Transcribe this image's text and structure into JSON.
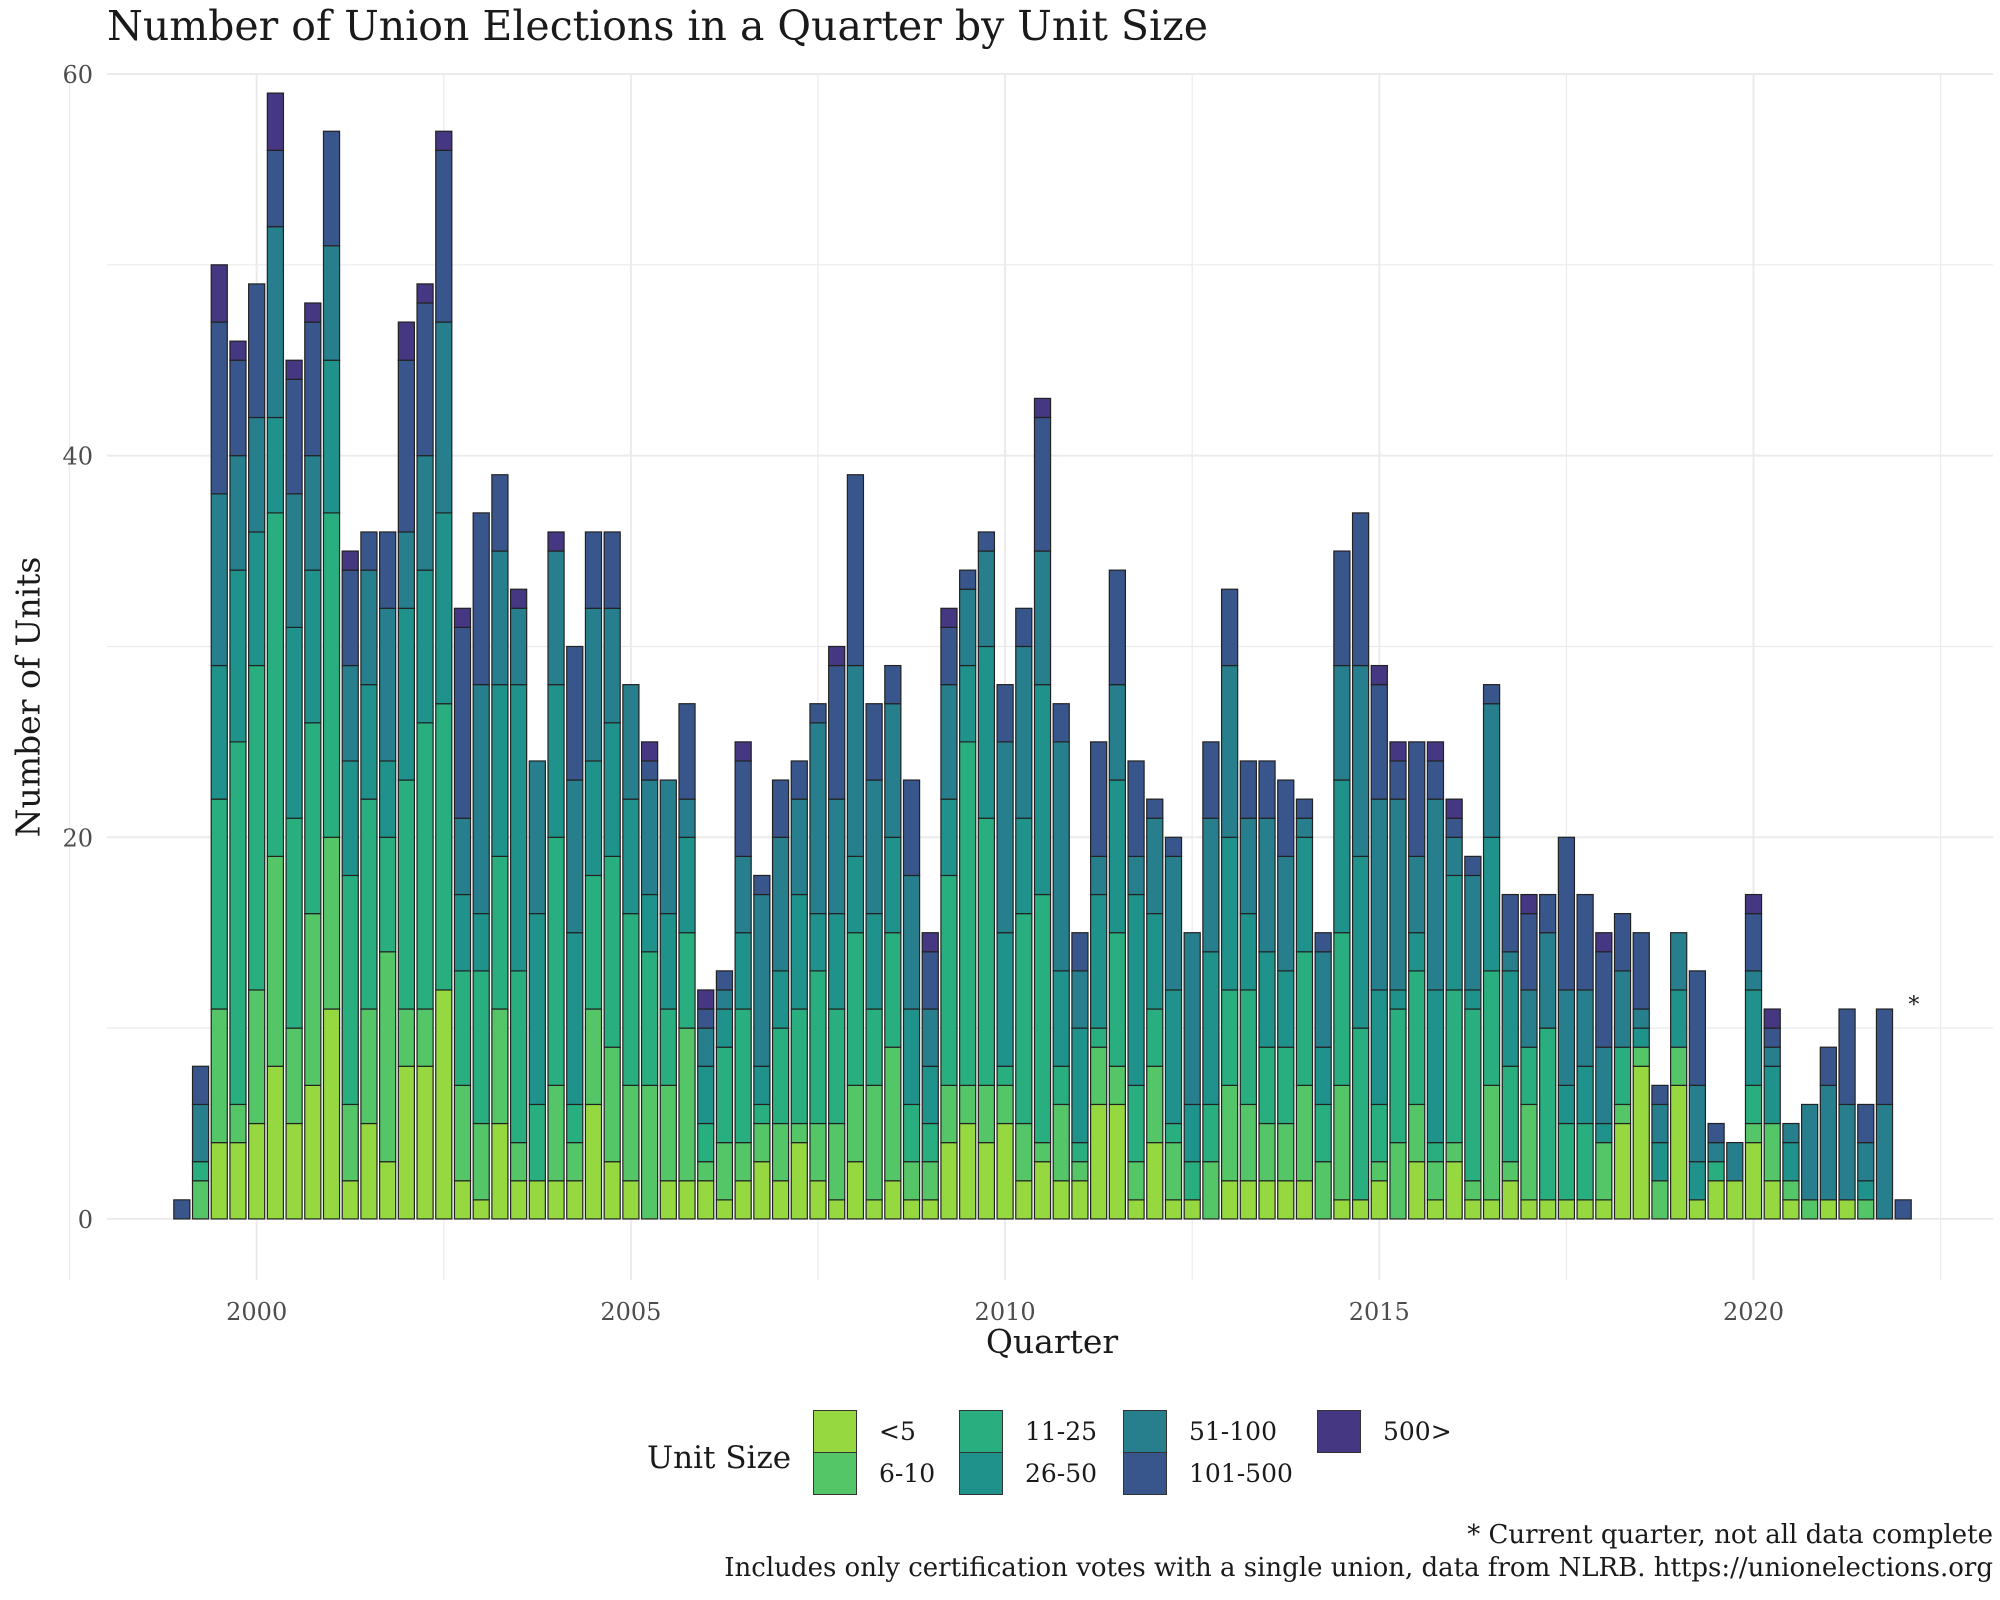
{
  "title": "Number of Union Elections in a Quarter by Unit Size",
  "captions": {
    "note": "* Current quarter, not all data complete",
    "source": "Includes only certification votes with a single union, data from NLRB. https://unionelections.org"
  },
  "legend": {
    "title": "Unit Size",
    "items": [
      {
        "label": "<5",
        "color": "#95D840"
      },
      {
        "label": "6-10",
        "color": "#55C667"
      },
      {
        "label": "11-25",
        "color": "#29AF7F"
      },
      {
        "label": "26-50",
        "color": "#20928C"
      },
      {
        "label": "51-100",
        "color": "#277F8E"
      },
      {
        "label": "101-500",
        "color": "#39568C"
      },
      {
        "label": "500>",
        "color": "#453781"
      }
    ]
  },
  "chart_data": {
    "type": "bar",
    "stacked": true,
    "title": "Number of Union Elections in a Quarter by Unit Size",
    "xlabel": "Quarter",
    "ylabel": "Number of Units",
    "xlim": [
      1998.0,
      2023.2
    ],
    "ylim": [
      -3.2,
      60
    ],
    "x_ticks": [
      2000,
      2005,
      2010,
      2015,
      2020
    ],
    "y_ticks": [
      0,
      20,
      40,
      60
    ],
    "grid": true,
    "legend_position": "bottom",
    "annotation": {
      "x": 2022.25,
      "y": 10,
      "text": "*"
    },
    "x": [
      1999.0,
      1999.25,
      1999.5,
      1999.75,
      2000.0,
      2000.25,
      2000.5,
      2000.75,
      2001.0,
      2001.25,
      2001.5,
      2001.75,
      2002.0,
      2002.25,
      2002.5,
      2002.75,
      2003.0,
      2003.25,
      2003.5,
      2003.75,
      2004.0,
      2004.25,
      2004.5,
      2004.75,
      2005.0,
      2005.25,
      2005.5,
      2005.75,
      2006.0,
      2006.25,
      2006.5,
      2006.75,
      2007.0,
      2007.25,
      2007.5,
      2007.75,
      2008.0,
      2008.25,
      2008.5,
      2008.75,
      2009.0,
      2009.25,
      2009.5,
      2009.75,
      2010.0,
      2010.25,
      2010.5,
      2010.75,
      2011.0,
      2011.25,
      2011.5,
      2011.75,
      2012.0,
      2012.25,
      2012.5,
      2012.75,
      2013.0,
      2013.25,
      2013.5,
      2013.75,
      2014.0,
      2014.25,
      2014.5,
      2014.75,
      2015.0,
      2015.25,
      2015.5,
      2015.75,
      2016.0,
      2016.25,
      2016.5,
      2016.75,
      2017.0,
      2017.25,
      2017.5,
      2017.75,
      2018.0,
      2018.25,
      2018.5,
      2018.75,
      2019.0,
      2019.25,
      2019.5,
      2019.75,
      2020.0,
      2020.25,
      2020.5,
      2020.75,
      2021.0,
      2021.25,
      2021.5,
      2021.75,
      2022.0,
      2022.25
    ],
    "series": [
      {
        "name": "<5",
        "values": [
          0,
          0,
          4,
          4,
          5,
          8,
          5,
          7,
          11,
          2,
          5,
          3,
          8,
          8,
          12,
          2,
          1,
          5,
          2,
          2,
          2,
          2,
          6,
          3,
          2,
          0,
          2,
          2,
          2,
          1,
          2,
          3,
          2,
          4,
          2,
          1,
          3,
          1,
          2,
          1,
          1,
          4,
          5,
          4,
          5,
          2,
          3,
          2,
          2,
          6,
          6,
          1,
          4,
          1,
          1,
          0,
          2,
          2,
          2,
          2,
          2,
          0,
          1,
          1,
          2,
          0,
          3,
          1,
          3,
          1,
          1,
          2,
          1,
          1,
          1,
          1,
          1,
          5,
          8,
          0,
          7,
          1,
          2,
          2,
          4,
          2,
          1,
          0,
          1,
          1,
          0,
          0,
          0,
          0
        ]
      },
      {
        "name": "6-10",
        "values": [
          0,
          2,
          7,
          2,
          7,
          11,
          5,
          9,
          9,
          4,
          6,
          11,
          3,
          3,
          0,
          5,
          4,
          6,
          2,
          0,
          5,
          2,
          5,
          6,
          5,
          7,
          5,
          8,
          1,
          3,
          2,
          2,
          3,
          1,
          3,
          4,
          4,
          6,
          7,
          2,
          2,
          3,
          2,
          3,
          2,
          3,
          1,
          4,
          1,
          3,
          2,
          2,
          4,
          3,
          0,
          3,
          5,
          4,
          3,
          3,
          5,
          3,
          6,
          0,
          1,
          4,
          3,
          2,
          1,
          1,
          6,
          1,
          5,
          0,
          0,
          0,
          3,
          1,
          1,
          2,
          2,
          0,
          0,
          0,
          1,
          3,
          1,
          1,
          0,
          0,
          1,
          0,
          0,
          0
        ]
      },
      {
        "name": "11-25",
        "values": [
          0,
          1,
          11,
          19,
          17,
          18,
          11,
          10,
          17,
          12,
          11,
          6,
          12,
          15,
          15,
          6,
          8,
          8,
          9,
          4,
          13,
          2,
          7,
          10,
          9,
          7,
          4,
          5,
          2,
          5,
          7,
          1,
          5,
          6,
          8,
          6,
          8,
          4,
          6,
          3,
          2,
          11,
          18,
          14,
          1,
          11,
          13,
          2,
          1,
          1,
          7,
          4,
          3,
          1,
          2,
          3,
          5,
          6,
          4,
          4,
          7,
          3,
          8,
          9,
          3,
          7,
          7,
          1,
          8,
          9,
          6,
          5,
          3,
          9,
          4,
          4,
          0,
          3,
          0,
          0,
          0,
          0,
          1,
          0,
          2,
          0,
          0,
          0,
          0,
          0,
          0,
          0,
          0,
          0
        ]
      },
      {
        "name": "26-50",
        "values": [
          0,
          0,
          7,
          9,
          7,
          5,
          10,
          8,
          8,
          6,
          6,
          4,
          9,
          8,
          10,
          4,
          3,
          9,
          15,
          10,
          8,
          9,
          6,
          7,
          6,
          3,
          5,
          5,
          3,
          2,
          4,
          2,
          3,
          6,
          3,
          5,
          4,
          5,
          5,
          5,
          3,
          4,
          4,
          9,
          7,
          5,
          11,
          5,
          6,
          7,
          8,
          10,
          5,
          7,
          3,
          8,
          8,
          4,
          5,
          4,
          6,
          3,
          8,
          9,
          6,
          1,
          2,
          8,
          6,
          1,
          7,
          5,
          0,
          0,
          2,
          3,
          1,
          0,
          1,
          2,
          3,
          2,
          0,
          0,
          5,
          3,
          2,
          0,
          0,
          0,
          1,
          0,
          0,
          0
        ]
      },
      {
        "name": "51-100",
        "values": [
          0,
          3,
          9,
          6,
          6,
          10,
          7,
          6,
          6,
          5,
          6,
          8,
          4,
          6,
          10,
          4,
          12,
          7,
          4,
          8,
          7,
          8,
          8,
          6,
          6,
          6,
          7,
          2,
          2,
          1,
          4,
          9,
          7,
          5,
          10,
          6,
          10,
          7,
          7,
          7,
          3,
          6,
          4,
          5,
          10,
          9,
          7,
          12,
          3,
          2,
          5,
          2,
          5,
          7,
          9,
          7,
          9,
          5,
          7,
          6,
          1,
          5,
          6,
          10,
          10,
          10,
          4,
          10,
          2,
          6,
          7,
          1,
          3,
          5,
          5,
          4,
          4,
          4,
          1,
          2,
          3,
          4,
          1,
          2,
          1,
          1,
          1,
          5,
          6,
          5,
          2,
          6,
          0,
          0
        ]
      },
      {
        "name": "101-500",
        "values": [
          1,
          2,
          9,
          5,
          7,
          4,
          6,
          7,
          6,
          5,
          2,
          4,
          9,
          8,
          9,
          10,
          9,
          4,
          0,
          0,
          0,
          7,
          4,
          4,
          0,
          1,
          0,
          5,
          1,
          1,
          5,
          1,
          3,
          2,
          1,
          7,
          10,
          4,
          2,
          5,
          3,
          3,
          1,
          1,
          3,
          2,
          7,
          2,
          2,
          6,
          6,
          5,
          1,
          1,
          0,
          4,
          4,
          3,
          3,
          4,
          1,
          1,
          6,
          8,
          6,
          2,
          6,
          2,
          1,
          1,
          1,
          3,
          4,
          2,
          8,
          5,
          5,
          3,
          4,
          1,
          0,
          6,
          1,
          0,
          3,
          1,
          0,
          0,
          2,
          5,
          2,
          5,
          1,
          0
        ]
      },
      {
        "name": "500>",
        "values": [
          0,
          0,
          3,
          1,
          0,
          3,
          1,
          1,
          0,
          1,
          0,
          0,
          2,
          1,
          1,
          1,
          0,
          0,
          1,
          0,
          1,
          0,
          0,
          0,
          0,
          1,
          0,
          0,
          1,
          0,
          1,
          0,
          0,
          0,
          0,
          1,
          0,
          0,
          0,
          0,
          1,
          1,
          0,
          0,
          0,
          0,
          1,
          0,
          0,
          0,
          0,
          0,
          0,
          0,
          0,
          0,
          0,
          0,
          0,
          0,
          0,
          0,
          0,
          0,
          1,
          1,
          0,
          1,
          1,
          0,
          0,
          0,
          1,
          0,
          0,
          0,
          1,
          0,
          0,
          0,
          0,
          0,
          0,
          0,
          1,
          1,
          0,
          0,
          0,
          0,
          0,
          0,
          0,
          0
        ]
      }
    ]
  }
}
